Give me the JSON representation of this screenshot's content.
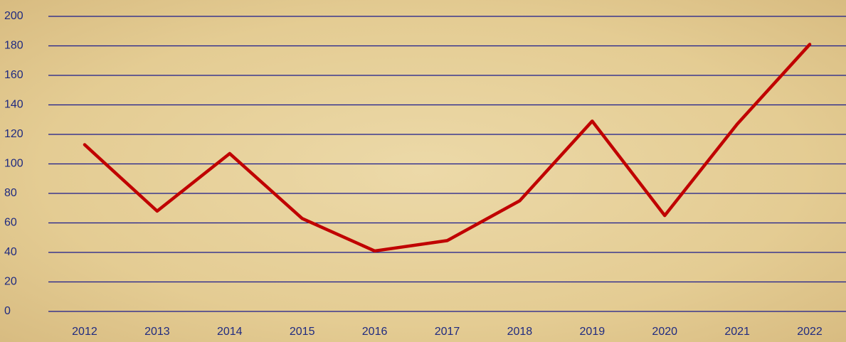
{
  "chart_data": {
    "type": "line",
    "categories": [
      "2012",
      "2013",
      "2014",
      "2015",
      "2016",
      "2017",
      "2018",
      "2019",
      "2020",
      "2021",
      "2022"
    ],
    "values": [
      113,
      68,
      107,
      63,
      41,
      48,
      75,
      129,
      65,
      127,
      181
    ],
    "color": "#c00000",
    "ylim": [
      0,
      200
    ],
    "yticks": [
      0,
      20,
      40,
      60,
      80,
      100,
      120,
      140,
      160,
      180,
      200
    ],
    "grid": true,
    "grid_color": "#1a1a8c"
  }
}
